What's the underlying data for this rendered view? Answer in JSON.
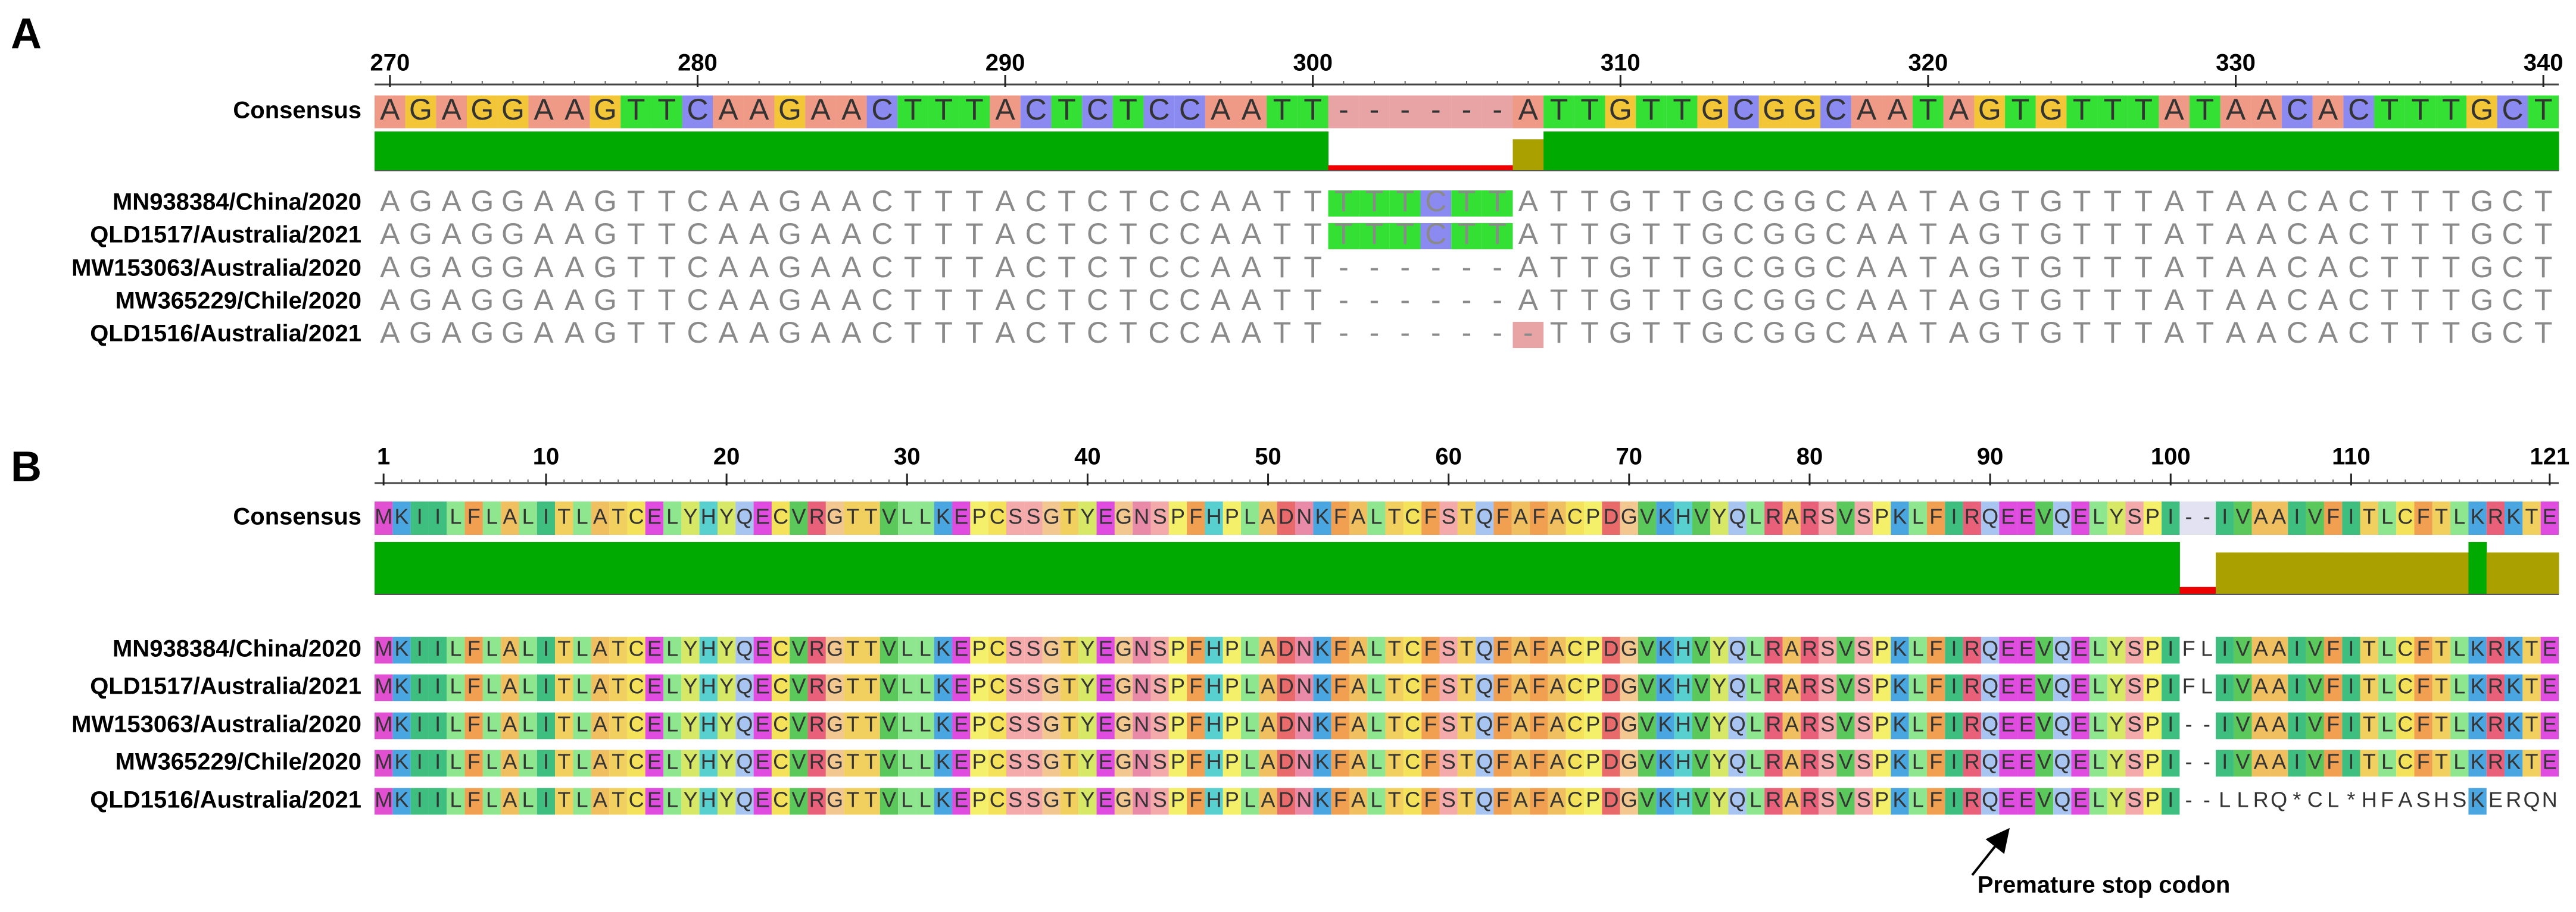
{
  "panels": [
    {
      "label": "A",
      "ruler": [
        270,
        280,
        290,
        300,
        310,
        320,
        330,
        340
      ],
      "consensus": {
        "name": "Consensus",
        "sequence": "AGAGGAAGTTCAAGAACTTTACTCTCCAATT------ATTGTTGCGGCAATAGTGTTTATAACACTTTGCT"
      },
      "rows": [
        {
          "name": "MN938384/China/2020",
          "sequence": "AGAGGAAGTTCAAGAACTTTACTCTCCAATTTTTCTTATTGTTGCGGCAATAGTGTTTATAACACTTTGCT"
        },
        {
          "name": "QLD1517/Australia/2021",
          "sequence": "AGAGGAAGTTCAAGAACTTTACTCTCCAATTTTTCTTATTGTTGCGGCAATAGTGTTTATAACACTTTGCT"
        },
        {
          "name": "MW153063/Australia/2020",
          "sequence": "AGAGGAAGTTCAAGAACTTTACTCTCCAATT------ATTGTTGCGGCAATAGTGTTTATAACACTTTGCT"
        },
        {
          "name": "MW365229/Chile/2020",
          "sequence": "AGAGGAAGTTCAAGAACTTTACTCTCCAATT------ATTGTTGCGGCAATAGTGTTTATAACACTTTGCT"
        },
        {
          "name": "QLD1516/Australia/2021",
          "sequence": "AGAGGAAGTTCAAGAACTTTACTCTCCAATT-------TTGTTGCGGCAATAGTGTTTATAACACTTTGCT"
        }
      ]
    },
    {
      "label": "B",
      "ruler": [
        1,
        10,
        20,
        30,
        40,
        50,
        60,
        70,
        80,
        90,
        100,
        110,
        121
      ],
      "consensus": {
        "name": "Consensus",
        "sequence": "MKIILFLALITLATCELYHYQECVRGTTVLLKEPCSSGTYEGNSPFHPLADNKFALTCFSTQFAFACPDGVKHVYQLRARSVSPKLFIRQEEVQELYSPI--IVAAIVFITLCFTLKRKTE"
      },
      "rows": [
        {
          "name": "MN938384/China/2020",
          "sequence": "MKIILFLALITLATCELYHYQECVRGTTVLLKEPCSSGTYEGNSPFHPLADNKFALTCFSTQFAFACPDGVKHVYQLRARSVSPKLFIRQEEVQELYSPIFLIVAAIVFITLCFTLKRKTE"
        },
        {
          "name": "QLD1517/Australia/2021",
          "sequence": "MKIILFLALITLATCELYHYQECVRGTTVLLKEPCSSGTYEGNSPFHPLADNKFALTCFSTQFAFACPDGVKHVYQLRARSVSPKLFIRQEEVQELYSPIFLIVAAIVFITLCFTLKRKTE"
        },
        {
          "name": "MW153063/Australia/2020",
          "sequence": "MKIILFLALITLATCELYHYQECVRGTTVLLKEPCSSGTYEGNSPFHPLADNKFALTCFSTQFAFACPDGVKHVYQLRARSVSPKLFIRQEEVQELYSPI--IVAAIVFITLCFTLKRKTE"
        },
        {
          "name": "MW365229/Chile/2020",
          "sequence": "MKIILFLALITLATCELYHYQECVRGTTVLLKEPCSSGTYEGNSPFHPLADNKFALTCFSTQFAFACPDGVKHVYQLRARSVSPKLFIRQEEVQELYSPI--IVAAIVFITLCFTLKRKTE"
        },
        {
          "name": "QLD1516/Australia/2021",
          "sequence": "MKIILFLALITLATCELYHYQECVRGTTVLLKEPCSSGTYEGNSPFHPLADNKFALTCFSTQFAFACPDGVKHVYQLRARSVSPKLFIRQEEVQELYSPI--LLRQ*CL*HFASHSKERQN"
        }
      ],
      "annotation": "Premature stop codon"
    }
  ]
}
